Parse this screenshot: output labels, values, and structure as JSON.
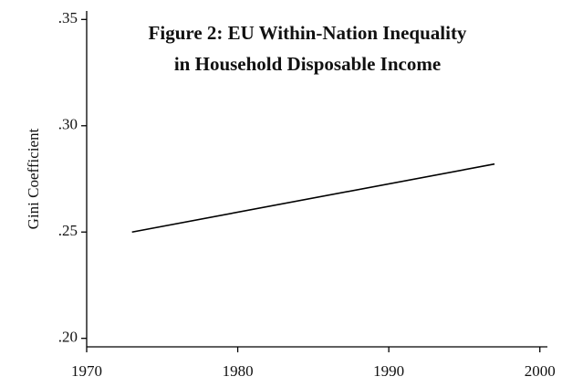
{
  "chart_data": {
    "type": "line",
    "title": [
      "Figure 2: EU Within-Nation Inequality",
      "in Household Disposable Income"
    ],
    "y_label": "Gini Coefficient",
    "x": [
      1973,
      1997
    ],
    "series": [
      {
        "color": "#000000",
        "values": [
          0.25,
          0.282
        ]
      }
    ],
    "xlim": [
      1970,
      2000.5
    ],
    "xticks": [
      1970,
      1980,
      1990,
      2000
    ],
    "ylim": [
      0.196,
      0.354
    ],
    "yticks": [
      {
        "value": 0.2,
        "label": ".20"
      },
      {
        "value": 0.25,
        "label": ".25"
      },
      {
        "value": 0.3,
        "label": ".30"
      },
      {
        "value": 0.35,
        "label": ".35"
      }
    ]
  }
}
